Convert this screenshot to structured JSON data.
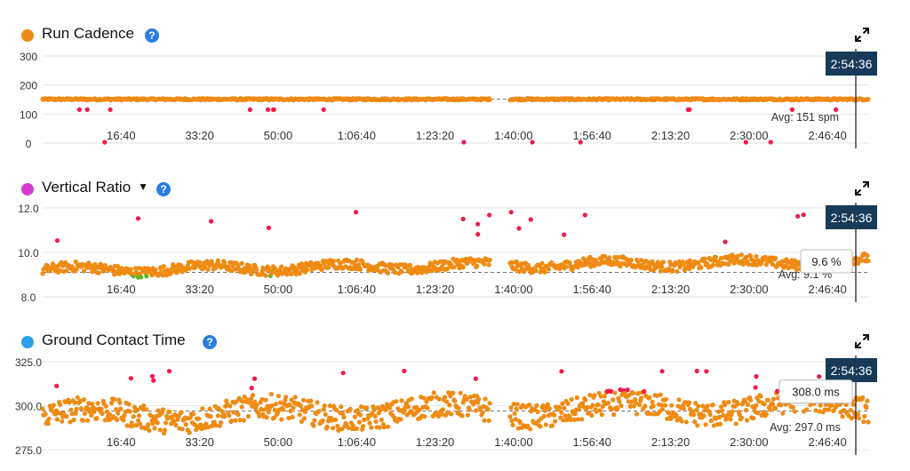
{
  "colors": {
    "orange": "#ef8b14",
    "red": "#f01a4c",
    "green": "#5cb526",
    "magenta": "#d63bd1",
    "blue": "#2a9fe9",
    "help": "#2a7de1",
    "cursor_bg": "#183a59"
  },
  "icons": {
    "help": "help-icon",
    "expand": "expand-icon",
    "dropdown": "caret-down-icon"
  },
  "x_ticks": [
    "16:40",
    "33:20",
    "50:00",
    "1:06:40",
    "1:23:20",
    "1:40:00",
    "1:56:40",
    "2:13:20",
    "2:30:00",
    "2:46:40"
  ],
  "cursor_time": "2:54:36",
  "panels": [
    {
      "title": "Run Cadence",
      "legend_color": "#ef8b14",
      "help_glyph": "?",
      "caret": "",
      "y_ticks": [
        "300",
        "200",
        "100",
        "0"
      ],
      "avg_label": "Avg: 151 spm",
      "hover_value": ""
    },
    {
      "title": "Vertical Ratio",
      "legend_color": "#d63bd1",
      "help_glyph": "?",
      "caret": "▼",
      "y_ticks": [
        "12.0",
        "10.0",
        "8.0"
      ],
      "avg_label": "Avg: 9.1 %",
      "hover_value": "9.6 %"
    },
    {
      "title": "Ground Contact Time",
      "legend_color": "#2a9fe9",
      "help_glyph": "?",
      "caret": "",
      "y_ticks": [
        "325.0",
        "300.0",
        "275.0"
      ],
      "avg_label": "Avg: 297.0 ms",
      "hover_value": "308.0 ms"
    }
  ],
  "chart_data": [
    {
      "type": "scatter",
      "title": "Run Cadence",
      "x_unit": "elapsed time (h:mm:ss)",
      "x_range": [
        "0:00",
        "2:55:30"
      ],
      "x_ticks": [
        "16:40",
        "33:20",
        "50:00",
        "1:06:40",
        "1:23:20",
        "1:40:00",
        "1:56:40",
        "2:13:20",
        "2:30:00",
        "2:46:40"
      ],
      "y_ticks": [
        0,
        100,
        200,
        300
      ],
      "ylim": [
        0,
        300
      ],
      "average": 151,
      "average_label": "Avg: 151 spm",
      "typical_value": 151,
      "cursor": {
        "time": "2:54:36",
        "value": 151
      },
      "grid": true
    },
    {
      "type": "scatter",
      "title": "Vertical Ratio",
      "x_unit": "elapsed time (h:mm:ss)",
      "x_range": [
        "0:00",
        "2:55:30"
      ],
      "x_ticks": [
        "16:40",
        "33:20",
        "50:00",
        "1:06:40",
        "1:23:20",
        "1:40:00",
        "1:56:40",
        "2:13:20",
        "2:30:00",
        "2:46:40"
      ],
      "y_ticks": [
        8.0,
        10.0,
        12.0
      ],
      "ylim": [
        8.0,
        12.0
      ],
      "average": 9.1,
      "average_label": "Avg: 9.1 %",
      "typical_value": 9.2,
      "cursor": {
        "time": "2:54:36",
        "value": 9.6
      },
      "grid": true
    },
    {
      "type": "scatter",
      "title": "Ground Contact Time",
      "x_unit": "elapsed time (h:mm:ss)",
      "x_range": [
        "0:00",
        "2:55:30"
      ],
      "x_ticks": [
        "16:40",
        "33:20",
        "50:00",
        "1:06:40",
        "1:23:20",
        "1:40:00",
        "1:56:40",
        "2:13:20",
        "2:30:00",
        "2:46:40"
      ],
      "y_ticks": [
        275.0,
        300.0,
        325.0
      ],
      "ylim": [
        275.0,
        325.0
      ],
      "average": 297.0,
      "average_label": "Avg: 297.0 ms",
      "typical_value": 294,
      "cursor": {
        "time": "2:54:36",
        "value": 308.0
      },
      "grid": true
    }
  ]
}
